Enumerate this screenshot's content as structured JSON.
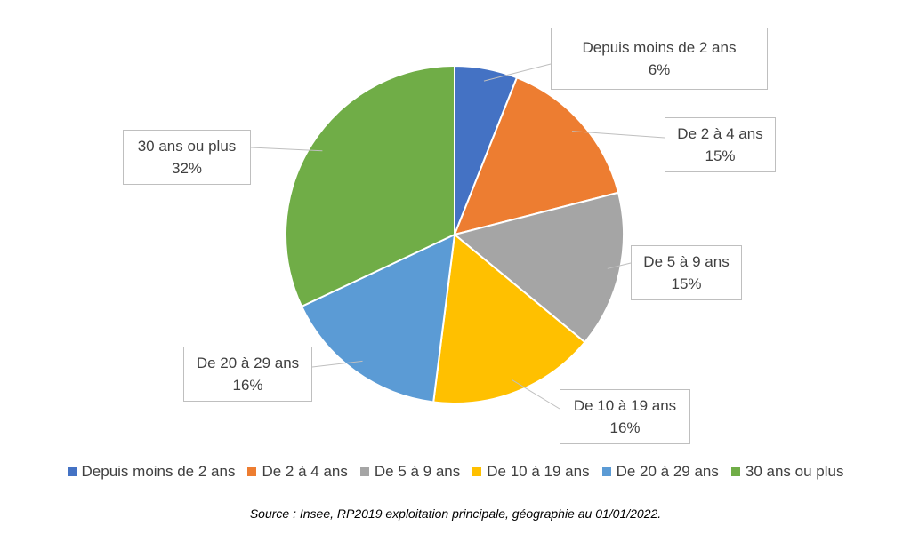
{
  "chart_data": {
    "type": "pie",
    "title": "",
    "categories": [
      "Depuis moins de 2 ans",
      "De 2 à 4 ans",
      "De 5 à 9 ans",
      "De 10 à 19 ans",
      "De 20 à 29 ans",
      "30 ans ou plus"
    ],
    "values": [
      6,
      15,
      15,
      16,
      16,
      32
    ],
    "data_labels": [
      "6%",
      "15%",
      "15%",
      "16%",
      "16%",
      "32%"
    ],
    "colors": [
      "#4472c4",
      "#ed7d31",
      "#a5a5a5",
      "#ffc000",
      "#5b9bd5",
      "#70ad47"
    ],
    "legend_position": "bottom",
    "start_angle": "12 o'clock, clockwise"
  },
  "source_note": "Source : Insee, RP2019 exploitation principale, géographie au 01/01/2022."
}
